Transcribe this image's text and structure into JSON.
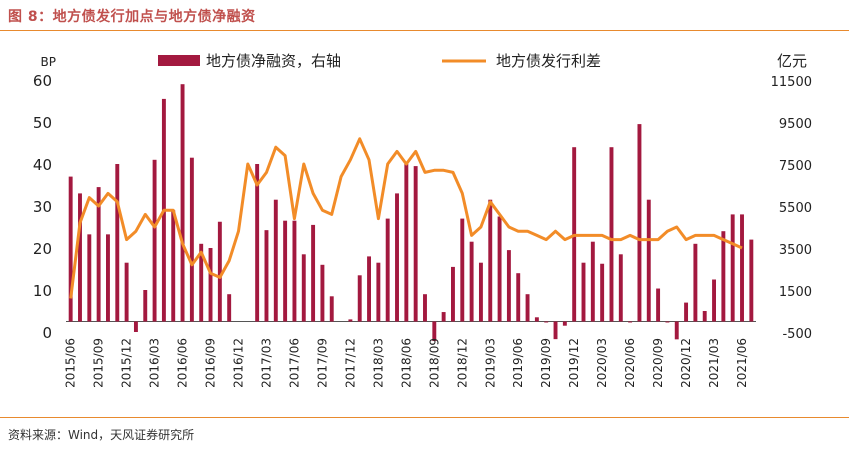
{
  "header": {
    "title": "图 8：地方债发行加点与地方债净融资"
  },
  "footer": {
    "source": "资料来源：Wind，天风证券研究所"
  },
  "chart_data": {
    "type": "bar+line",
    "left_axis": {
      "unit": "BP",
      "min": 0,
      "max": 60,
      "ticks": [
        0,
        10,
        20,
        30,
        40,
        50,
        60
      ]
    },
    "right_axis": {
      "unit": "亿元",
      "min": -500,
      "max": 11500,
      "ticks": [
        -500,
        1500,
        3500,
        5500,
        7500,
        9500,
        11500
      ]
    },
    "x_tick_labels": [
      "2015/06",
      "2015/09",
      "2015/12",
      "2016/03",
      "2016/06",
      "2016/09",
      "2016/12",
      "2017/03",
      "2017/06",
      "2017/09",
      "2017/12",
      "2018/03",
      "2018/06",
      "2018/09",
      "2018/12",
      "2019/03",
      "2019/06",
      "2019/09",
      "2019/12",
      "2020/03",
      "2020/06",
      "2020/09",
      "2020/12",
      "2021/03",
      "2021/06"
    ],
    "legend": {
      "position": "top",
      "entries": [
        "地方债净融资，右轴",
        "地方债发行利差"
      ]
    },
    "colors": {
      "bar": "#a3193f",
      "line": "#f28c28",
      "accent": "#c0504d",
      "rule": "#e88a2e"
    },
    "series": [
      {
        "name": "地方债净融资，右轴",
        "type": "bar",
        "axis": "right",
        "values": [
          6900,
          6100,
          4150,
          6400,
          4150,
          7500,
          2800,
          -500,
          1500,
          7700,
          10600,
          5300,
          11300,
          7800,
          3700,
          3500,
          4750,
          1300,
          null,
          null,
          7500,
          4350,
          5800,
          4800,
          4800,
          3200,
          4600,
          2700,
          1200,
          null,
          100,
          2200,
          3100,
          2800,
          4900,
          6100,
          7500,
          7400,
          1300,
          -930,
          450,
          2600,
          4900,
          3800,
          2800,
          5800,
          5000,
          3400,
          2300,
          1300,
          200,
          -40,
          -840,
          -200,
          8300,
          2800,
          3800,
          2750,
          8300,
          3200,
          -10,
          9400,
          5800,
          1570,
          0,
          -850,
          900,
          3700,
          500,
          2000,
          4300,
          5100,
          5100,
          3900
        ],
        "_note": "values are end-of-month net financing in 亿元, Jun-2015 to Jul-2021 in order"
      },
      {
        "name": "地方债发行利差",
        "type": "line",
        "axis": "left",
        "values": [
          8,
          26,
          32,
          30,
          33,
          31,
          22,
          24,
          28,
          25,
          29,
          29,
          21,
          16,
          19,
          14,
          13,
          17,
          24,
          40,
          35,
          38,
          44,
          42,
          27,
          40,
          33,
          29,
          28,
          37,
          41,
          46,
          41,
          27,
          40,
          43,
          40,
          43,
          38,
          38.5,
          38.5,
          38,
          33,
          23,
          25,
          31,
          28,
          25,
          24,
          24,
          23,
          22,
          24,
          22,
          23,
          23,
          23,
          23,
          22,
          22,
          23,
          22,
          22,
          22,
          24,
          25,
          22,
          23,
          23,
          23,
          22,
          21,
          20
        ]
      }
    ]
  }
}
